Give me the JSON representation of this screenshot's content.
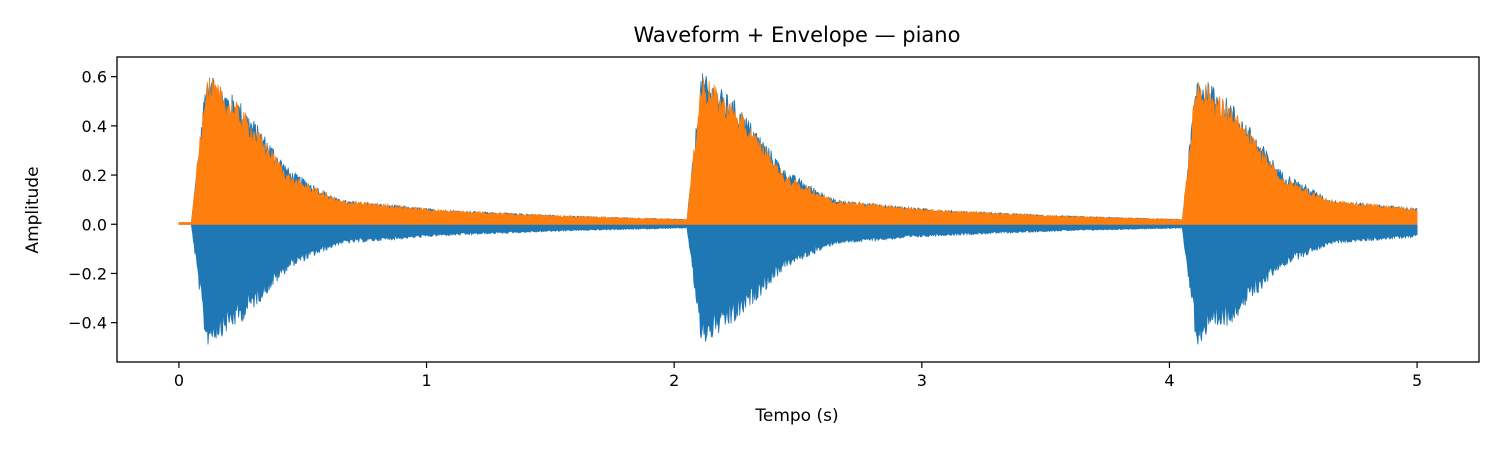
{
  "chart_data": {
    "type": "area",
    "title": "Waveform + Envelope — piano",
    "xlabel": "Tempo (s)",
    "ylabel": "Amplitude",
    "xlim": [
      -0.25,
      5.25
    ],
    "ylim": [
      -0.56,
      0.68
    ],
    "xticks": [
      0,
      1,
      2,
      3,
      4,
      5
    ],
    "xtick_labels": [
      "0",
      "1",
      "2",
      "3",
      "4",
      "5"
    ],
    "yticks": [
      -0.4,
      -0.2,
      0.0,
      0.2,
      0.4,
      0.6
    ],
    "ytick_labels": [
      "−0.4",
      "−0.2",
      "0.0",
      "0.2",
      "0.4",
      "0.6"
    ],
    "grid": false,
    "legend": "none",
    "duration": 5.0,
    "note_onsets": [
      0.05,
      2.05,
      4.05
    ],
    "series": [
      {
        "color": "#1f77b4",
        "kind": "waveform",
        "peak_max": 0.62,
        "peak_min": -0.5,
        "decay_points": [
          [
            0.0,
            0.0
          ],
          [
            0.06,
            0.62
          ],
          [
            0.2,
            0.5
          ],
          [
            0.4,
            0.22
          ],
          [
            0.6,
            0.1
          ],
          [
            1.0,
            0.06
          ],
          [
            1.5,
            0.035
          ],
          [
            2.0,
            0.02
          ]
        ]
      },
      {
        "color": "#ff7f0e",
        "kind": "envelope",
        "peak_max": 0.62,
        "peak_min": 0.0,
        "decay_points": [
          [
            0.0,
            0.0
          ],
          [
            0.06,
            0.62
          ],
          [
            0.2,
            0.48
          ],
          [
            0.4,
            0.2
          ],
          [
            0.6,
            0.1
          ],
          [
            1.0,
            0.06
          ],
          [
            1.5,
            0.035
          ],
          [
            2.0,
            0.02
          ]
        ]
      }
    ]
  }
}
